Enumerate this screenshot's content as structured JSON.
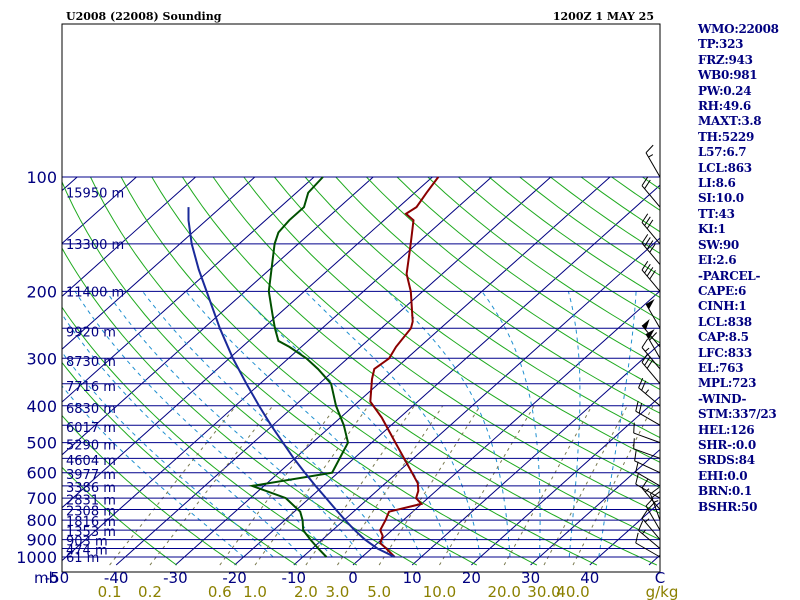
{
  "window": {
    "title_left": "U2008 (22008) Sounding",
    "title_right": "1200Z  1 MAY 25"
  },
  "colors": {
    "background": "#ffffff",
    "frame": "#000000",
    "isobar": "#00008b",
    "isotherm": "#000080",
    "dry_adiabat": "#1faa1f",
    "moist_adiabat": "#2090d0",
    "mixing_ratio": "#7a7a50",
    "temperature": "#8b0000",
    "dewpoint": "#005000",
    "parcel": "#1a2a9a",
    "axis_text": "#000080",
    "mixing_ratio_text": "#8b8000",
    "wind_barbs": "#000000",
    "panel_text": "#000080"
  },
  "side_panel": [
    "WMO:22008",
    "TP:323",
    "FRZ:943",
    "WB0:981",
    "PW:0.24",
    "RH:49.6",
    "MAXT:3.8",
    "TH:5229",
    "L57:6.7",
    "LCL:863",
    "LI:8.6",
    "SI:10.0",
    "TT:43",
    "KI:1",
    "SW:90",
    "EI:2.6",
    "-PARCEL-",
    "CAPE:6",
    "CINH:1",
    "LCL:838",
    "CAP:8.5",
    "LFC:833",
    "EL:763",
    "MPL:723",
    "-WIND-",
    "STM:337/23",
    "HEL:126",
    "SHR-:0.0",
    "SRDS:84",
    "EHI:0.0",
    "BRN:0.1",
    "BSHR:50"
  ],
  "chart_data": {
    "type": "skew-t log-p sounding",
    "title": "U2008 (22008) Sounding",
    "time": "1200Z  1 MAY 25",
    "y_axis_unit_label": "mb",
    "pressure_ticks": [
      100,
      200,
      300,
      400,
      500,
      600,
      700,
      800,
      900,
      1000
    ],
    "pressure_range": [
      100,
      1050
    ],
    "temperature_ticks": [
      -50,
      -40,
      -30,
      -20,
      -10,
      0,
      10,
      20,
      30,
      40
    ],
    "temperature_tick_labels": [
      "-50",
      "-40",
      "-30",
      "-20",
      "-10",
      "0",
      "10",
      "20",
      "30",
      "40"
    ],
    "temperature_range_at_bottom": [
      -50,
      50
    ],
    "right_axis_label": "C",
    "mixing_ratio_labels": [
      "0.1",
      "0.2",
      "0.6",
      "1.0",
      "2.0",
      "3.0",
      "5.0",
      "10.0",
      "20.0",
      "30.0",
      "40.0"
    ],
    "mixing_ratio_values": [
      0.1,
      0.2,
      0.6,
      1.0,
      2.0,
      3.0,
      5.0,
      10.0,
      20.0,
      30.0,
      40.0
    ],
    "mixing_ratio_unit": "g/kg",
    "height_labels": [
      {
        "p": 110,
        "text": "15950 m"
      },
      {
        "p": 150,
        "text": "13300 m"
      },
      {
        "p": 200,
        "text": "11400 m"
      },
      {
        "p": 255,
        "text": "9920 m"
      },
      {
        "p": 305,
        "text": "8730 m"
      },
      {
        "p": 355,
        "text": "7716 m"
      },
      {
        "p": 405,
        "text": "6830 m"
      },
      {
        "p": 455,
        "text": "6017 m"
      },
      {
        "p": 505,
        "text": "5290 m"
      },
      {
        "p": 555,
        "text": "4604 m"
      },
      {
        "p": 605,
        "text": "3977 m"
      },
      {
        "p": 655,
        "text": "3386 m"
      },
      {
        "p": 705,
        "text": "2831 m"
      },
      {
        "p": 755,
        "text": "2308 m"
      },
      {
        "p": 805,
        "text": "1816 m"
      },
      {
        "p": 855,
        "text": "1353 m"
      },
      {
        "p": 905,
        "text": "903 m"
      },
      {
        "p": 955,
        "text": "474 m"
      },
      {
        "p": 1000,
        "text": "61 m"
      }
    ],
    "series": [
      {
        "name": "temperature",
        "points": [
          [
            1000,
            5.5
          ],
          [
            950,
            2.5
          ],
          [
            920,
            0.5
          ],
          [
            880,
            -0.5
          ],
          [
            850,
            -2.0
          ],
          [
            800,
            -3.0
          ],
          [
            760,
            -4.0
          ],
          [
            725,
            0.0
          ],
          [
            700,
            -2.0
          ],
          [
            670,
            -3.0
          ],
          [
            640,
            -4.5
          ],
          [
            600,
            -7.5
          ],
          [
            500,
            -16.0
          ],
          [
            430,
            -23.0
          ],
          [
            390,
            -28.0
          ],
          [
            340,
            -32.0
          ],
          [
            320,
            -33.5
          ],
          [
            300,
            -33.0
          ],
          [
            280,
            -34.0
          ],
          [
            250,
            -35.0
          ],
          [
            240,
            -36.0
          ],
          [
            200,
            -42.0
          ],
          [
            180,
            -46.0
          ],
          [
            150,
            -51.0
          ],
          [
            130,
            -55.0
          ],
          [
            125,
            -57.5
          ],
          [
            120,
            -57.0
          ],
          [
            110,
            -58.0
          ],
          [
            100,
            -59.0
          ]
        ]
      },
      {
        "name": "dewpoint",
        "points": [
          [
            1000,
            -6.0
          ],
          [
            950,
            -9.0
          ],
          [
            900,
            -12.0
          ],
          [
            850,
            -15.0
          ],
          [
            800,
            -17.0
          ],
          [
            760,
            -19.0
          ],
          [
            700,
            -24.0
          ],
          [
            650,
            -32.0
          ],
          [
            600,
            -21.0
          ],
          [
            500,
            -24.0
          ],
          [
            450,
            -28.0
          ],
          [
            400,
            -33.0
          ],
          [
            350,
            -38.0
          ],
          [
            320,
            -43.0
          ],
          [
            300,
            -47.0
          ],
          [
            280,
            -52.0
          ],
          [
            270,
            -55.0
          ],
          [
            250,
            -58.0
          ],
          [
            230,
            -61.0
          ],
          [
            200,
            -66.0
          ],
          [
            150,
            -74.0
          ],
          [
            140,
            -75.5
          ],
          [
            130,
            -76.0
          ],
          [
            120,
            -76.0
          ],
          [
            110,
            -78.0
          ],
          [
            100,
            -78.5
          ]
        ]
      },
      {
        "name": "parcel",
        "points": [
          [
            1000,
            5.5
          ],
          [
            950,
            1.0
          ],
          [
            900,
            -2.8
          ],
          [
            850,
            -6.3
          ],
          [
            800,
            -9.8
          ],
          [
            750,
            -13.4
          ],
          [
            700,
            -17.2
          ],
          [
            650,
            -21.3
          ],
          [
            600,
            -25.6
          ],
          [
            550,
            -30.2
          ],
          [
            500,
            -35.0
          ],
          [
            450,
            -40.3
          ],
          [
            400,
            -46.0
          ],
          [
            350,
            -52.3
          ],
          [
            300,
            -59.4
          ],
          [
            250,
            -67.3
          ],
          [
            200,
            -76.5
          ],
          [
            175,
            -82.0
          ],
          [
            150,
            -88.0
          ],
          [
            130,
            -93.0
          ],
          [
            120,
            -95.5
          ]
        ]
      }
    ],
    "wind_barbs": [
      {
        "p": 1000,
        "dir": 300,
        "spd": 10
      },
      {
        "p": 950,
        "dir": 310,
        "spd": 15
      },
      {
        "p": 900,
        "dir": 320,
        "spd": 15
      },
      {
        "p": 850,
        "dir": 330,
        "spd": 20
      },
      {
        "p": 800,
        "dir": 340,
        "spd": 25
      },
      {
        "p": 750,
        "dir": 320,
        "spd": 15
      },
      {
        "p": 700,
        "dir": 300,
        "spd": 10
      },
      {
        "p": 650,
        "dir": 300,
        "spd": 10
      },
      {
        "p": 600,
        "dir": 295,
        "spd": 10
      },
      {
        "p": 550,
        "dir": 290,
        "spd": 10
      },
      {
        "p": 500,
        "dir": 290,
        "spd": 10
      },
      {
        "p": 450,
        "dir": 300,
        "spd": 20
      },
      {
        "p": 400,
        "dir": 310,
        "spd": 25
      },
      {
        "p": 350,
        "dir": 320,
        "spd": 30
      },
      {
        "p": 320,
        "dir": 320,
        "spd": 15
      },
      {
        "p": 300,
        "dir": 330,
        "spd": 60
      },
      {
        "p": 280,
        "dir": 320,
        "spd": 50
      },
      {
        "p": 250,
        "dir": 330,
        "spd": 50
      },
      {
        "p": 200,
        "dir": 320,
        "spd": 40
      },
      {
        "p": 170,
        "dir": 320,
        "spd": 40
      },
      {
        "p": 150,
        "dir": 320,
        "spd": 30
      },
      {
        "p": 120,
        "dir": 320,
        "spd": 20
      },
      {
        "p": 100,
        "dir": 330,
        "spd": 15
      }
    ]
  }
}
